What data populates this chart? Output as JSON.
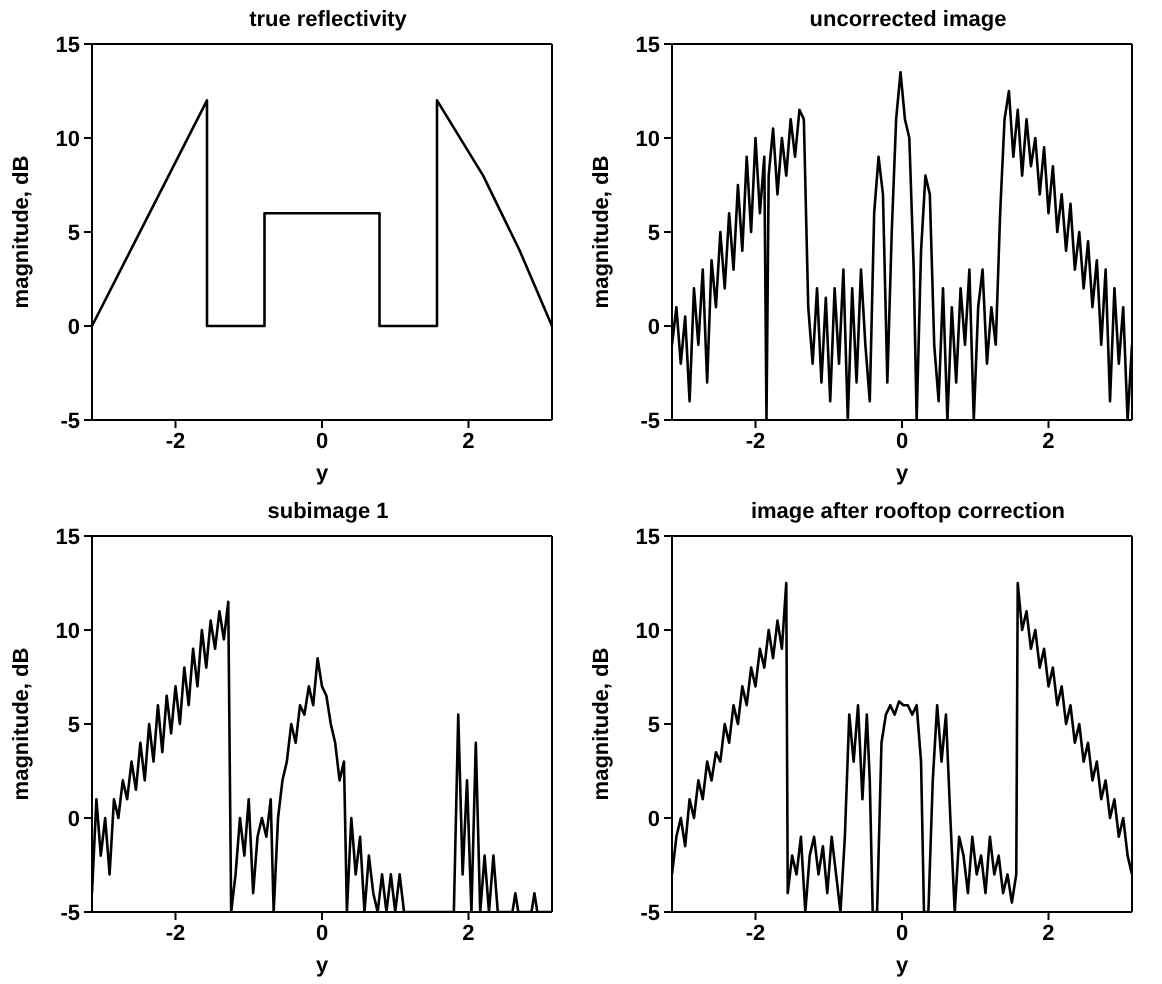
{
  "chart_data": [
    {
      "type": "line",
      "title": "true reflectivity",
      "xlabel": "y",
      "ylabel": "magnitude, dB",
      "color": "#000000",
      "xlim": [
        -3.14,
        3.14
      ],
      "ylim": [
        -5,
        15
      ],
      "xticks": [
        -2,
        0,
        2
      ],
      "yticks": [
        -5,
        0,
        5,
        10,
        15
      ],
      "grid": false,
      "legend": false,
      "x": [
        -3.14,
        -1.57,
        -1.57,
        -0.785,
        -0.785,
        0.785,
        0.785,
        1.57,
        1.57,
        2.2,
        2.7,
        3.14
      ],
      "values": [
        0,
        12,
        0,
        0,
        6,
        6,
        0,
        0,
        12,
        8,
        4,
        0
      ]
    },
    {
      "type": "line",
      "title": "uncorrected image",
      "xlabel": "y",
      "ylabel": "magnitude, dB",
      "color": "#000000",
      "xlim": [
        -3.14,
        3.14
      ],
      "ylim": [
        -5,
        15
      ],
      "xticks": [
        -2,
        0,
        2
      ],
      "yticks": [
        -5,
        0,
        5,
        10,
        15
      ],
      "grid": false,
      "legend": false,
      "x": [
        -3.14,
        -3.08,
        -3.02,
        -2.96,
        -2.9,
        -2.84,
        -2.78,
        -2.72,
        -2.66,
        -2.6,
        -2.54,
        -2.48,
        -2.42,
        -2.36,
        -2.3,
        -2.24,
        -2.18,
        -2.12,
        -2.06,
        -2.0,
        -1.94,
        -1.88,
        -1.85,
        -1.82,
        -1.76,
        -1.7,
        -1.64,
        -1.58,
        -1.52,
        -1.46,
        -1.4,
        -1.34,
        -1.28,
        -1.22,
        -1.16,
        -1.1,
        -1.04,
        -0.98,
        -0.92,
        -0.86,
        -0.8,
        -0.74,
        -0.68,
        -0.62,
        -0.56,
        -0.5,
        -0.44,
        -0.38,
        -0.32,
        -0.26,
        -0.2,
        -0.14,
        -0.08,
        -0.02,
        0.04,
        0.1,
        0.16,
        0.2,
        0.26,
        0.32,
        0.38,
        0.44,
        0.5,
        0.56,
        0.62,
        0.68,
        0.74,
        0.8,
        0.86,
        0.92,
        0.98,
        1.04,
        1.1,
        1.16,
        1.22,
        1.28,
        1.34,
        1.4,
        1.46,
        1.52,
        1.58,
        1.64,
        1.7,
        1.76,
        1.82,
        1.88,
        1.94,
        2.0,
        2.06,
        2.12,
        2.18,
        2.24,
        2.3,
        2.36,
        2.42,
        2.48,
        2.54,
        2.6,
        2.66,
        2.72,
        2.78,
        2.84,
        2.9,
        2.96,
        3.02,
        3.08,
        3.14
      ],
      "values": [
        -1,
        1,
        -2,
        0.5,
        -4,
        2,
        -1,
        3,
        -3,
        3.5,
        1,
        5,
        2,
        6,
        3,
        7.5,
        4,
        9,
        5,
        10,
        6,
        9,
        -5,
        8,
        10.5,
        7,
        10,
        8,
        11,
        9,
        11.5,
        11,
        1,
        -2,
        2,
        -3,
        1.5,
        -4,
        2,
        -2,
        3,
        -5,
        2,
        -3,
        3,
        -1,
        -4,
        6,
        9,
        7,
        -3,
        5,
        11,
        13.5,
        11,
        10,
        3,
        -5,
        4,
        8,
        7,
        -1,
        -4,
        2,
        -5,
        1,
        -3,
        2,
        -1,
        3,
        -5,
        1,
        3,
        -2,
        1,
        -1,
        6,
        11,
        12.5,
        9,
        11.5,
        8,
        11,
        8.5,
        10,
        7,
        9.5,
        6,
        8.5,
        5,
        7,
        4,
        6.5,
        3,
        5,
        2,
        4.5,
        1,
        3.5,
        -1,
        3,
        -4,
        2,
        -2,
        1,
        -5,
        -1
      ]
    },
    {
      "type": "line",
      "title": "subimage 1",
      "xlabel": "y",
      "ylabel": "magnitude, dB",
      "color": "#000000",
      "xlim": [
        -3.14,
        3.14
      ],
      "ylim": [
        -5,
        15
      ],
      "xticks": [
        -2,
        0,
        2
      ],
      "yticks": [
        -5,
        0,
        5,
        10,
        15
      ],
      "grid": false,
      "legend": false,
      "x": [
        -3.14,
        -3.08,
        -3.02,
        -2.96,
        -2.9,
        -2.84,
        -2.78,
        -2.72,
        -2.66,
        -2.6,
        -2.54,
        -2.48,
        -2.42,
        -2.36,
        -2.3,
        -2.24,
        -2.18,
        -2.12,
        -2.06,
        -2.0,
        -1.94,
        -1.88,
        -1.82,
        -1.76,
        -1.7,
        -1.64,
        -1.58,
        -1.52,
        -1.46,
        -1.4,
        -1.34,
        -1.28,
        -1.24,
        -1.18,
        -1.12,
        -1.06,
        -1.0,
        -0.94,
        -0.88,
        -0.82,
        -0.76,
        -0.7,
        -0.66,
        -0.6,
        -0.54,
        -0.48,
        -0.42,
        -0.36,
        -0.3,
        -0.24,
        -0.18,
        -0.12,
        -0.06,
        0,
        0.06,
        0.12,
        0.18,
        0.24,
        0.3,
        0.34,
        0.4,
        0.46,
        0.52,
        0.58,
        0.64,
        0.7,
        0.76,
        0.82,
        0.88,
        0.94,
        1.0,
        1.06,
        1.12,
        1.2,
        1.5,
        1.8,
        1.86,
        1.92,
        1.98,
        2.04,
        2.1,
        2.16,
        2.22,
        2.28,
        2.34,
        2.4,
        2.6,
        2.64,
        2.68,
        2.86,
        2.9,
        2.94,
        3.14
      ],
      "values": [
        -4,
        1,
        -2,
        0,
        -3,
        1,
        0,
        2,
        1,
        3,
        1.5,
        4,
        2,
        5,
        3,
        6,
        3.5,
        6.5,
        4.5,
        7,
        5,
        8,
        6,
        9,
        7,
        10,
        8,
        10.5,
        9,
        11,
        9.5,
        11.5,
        -5,
        -3,
        0,
        -2,
        1,
        -4,
        -1,
        0,
        -1,
        1,
        -5,
        0,
        2,
        3,
        5,
        4,
        6,
        5.5,
        7,
        6,
        8.5,
        7,
        6.5,
        5,
        4,
        2,
        3,
        -5,
        0,
        -3,
        -1,
        -5,
        -2,
        -4,
        -5,
        -3,
        -5,
        -3,
        -5,
        -3,
        -5,
        -5,
        -5,
        -5,
        5.5,
        -3,
        2,
        -5,
        4,
        -5,
        -2,
        -5,
        -2,
        -5,
        -5,
        -4,
        -5,
        -5,
        -4,
        -5,
        -5
      ]
    },
    {
      "type": "line",
      "title": "image after rooftop correction",
      "xlabel": "y",
      "ylabel": "magnitude, dB",
      "color": "#000000",
      "xlim": [
        -3.14,
        3.14
      ],
      "ylim": [
        -5,
        15
      ],
      "xticks": [
        -2,
        0,
        2
      ],
      "yticks": [
        -5,
        0,
        5,
        10,
        15
      ],
      "grid": false,
      "legend": false,
      "x": [
        -3.14,
        -3.08,
        -3.02,
        -2.96,
        -2.9,
        -2.84,
        -2.78,
        -2.72,
        -2.66,
        -2.6,
        -2.54,
        -2.48,
        -2.42,
        -2.36,
        -2.3,
        -2.24,
        -2.18,
        -2.12,
        -2.06,
        -2.0,
        -1.94,
        -1.88,
        -1.82,
        -1.76,
        -1.7,
        -1.64,
        -1.58,
        -1.56,
        -1.5,
        -1.44,
        -1.38,
        -1.32,
        -1.26,
        -1.2,
        -1.14,
        -1.08,
        -1.02,
        -0.96,
        -0.9,
        -0.84,
        -0.78,
        -0.72,
        -0.66,
        -0.6,
        -0.54,
        -0.48,
        -0.44,
        -0.4,
        -0.34,
        -0.28,
        -0.22,
        -0.16,
        -0.1,
        -0.04,
        0.02,
        0.08,
        0.14,
        0.2,
        0.26,
        0.3,
        0.36,
        0.42,
        0.48,
        0.54,
        0.6,
        0.66,
        0.72,
        0.78,
        0.84,
        0.9,
        0.96,
        1.02,
        1.08,
        1.14,
        1.2,
        1.26,
        1.32,
        1.38,
        1.44,
        1.5,
        1.56,
        1.58,
        1.64,
        1.7,
        1.76,
        1.82,
        1.88,
        1.94,
        2.0,
        2.06,
        2.12,
        2.18,
        2.24,
        2.3,
        2.36,
        2.42,
        2.48,
        2.54,
        2.6,
        2.66,
        2.72,
        2.78,
        2.84,
        2.9,
        2.96,
        3.02,
        3.08,
        3.14
      ],
      "values": [
        -3,
        -1,
        0,
        -1.5,
        1,
        0,
        2,
        1,
        3,
        2,
        3.5,
        3,
        5,
        4,
        6,
        5,
        7,
        6,
        8,
        7,
        9,
        8,
        10,
        8.5,
        10.5,
        9,
        12.5,
        -4,
        -2,
        -3,
        -1,
        -5,
        -2,
        -1,
        -3,
        -1.5,
        -4,
        -1,
        -3,
        -5,
        -1,
        5.5,
        3,
        6,
        1,
        5.5,
        2,
        -5,
        -5,
        4,
        5.5,
        6,
        5.5,
        6.2,
        6,
        6,
        5.5,
        6,
        3,
        -5,
        -5,
        2,
        6,
        3,
        5.5,
        0,
        -5,
        -1,
        -2,
        -4,
        -1,
        -3,
        -2,
        -4,
        -1,
        -3,
        -2,
        -4,
        -3,
        -4.5,
        -3,
        12.5,
        10,
        11,
        9,
        10,
        8,
        9,
        7,
        8,
        6,
        7,
        5,
        6,
        4,
        5,
        3,
        4,
        2,
        3,
        1,
        2,
        0,
        1,
        -1,
        0,
        -2,
        -3
      ]
    }
  ]
}
